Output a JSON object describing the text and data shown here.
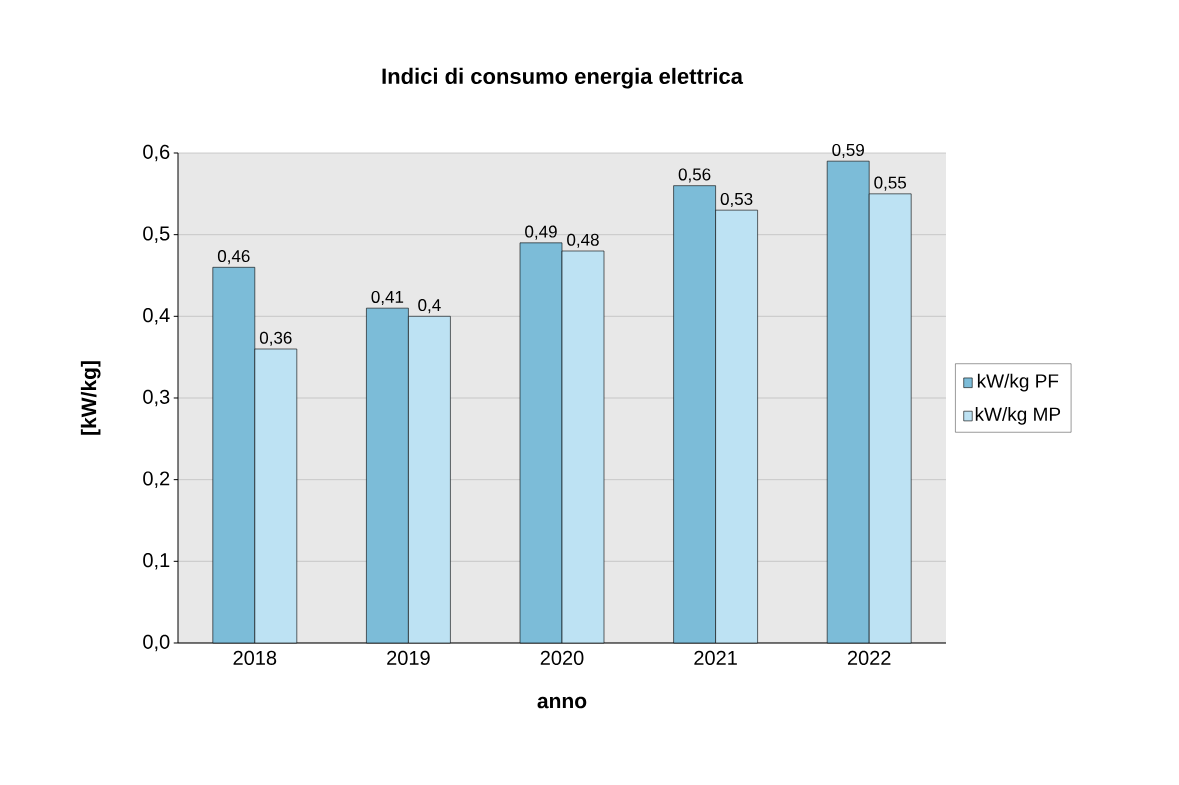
{
  "chart_data": {
    "type": "bar",
    "title": "Indici di consumo energia elettrica",
    "xlabel": "anno",
    "ylabel": "[kW/kg]",
    "categories": [
      "2018",
      "2019",
      "2020",
      "2021",
      "2022"
    ],
    "series": [
      {
        "name": "kW/kg PF",
        "color": "#7cbcd8",
        "values": [
          0.46,
          0.41,
          0.49,
          0.56,
          0.59
        ],
        "value_labels": [
          "0,46",
          "0,41",
          "0,49",
          "0,56",
          "0,59"
        ]
      },
      {
        "name": "kW/kg MP",
        "color": "#bde2f3",
        "values": [
          0.36,
          0.4,
          0.48,
          0.53,
          0.55
        ],
        "value_labels": [
          "0,36",
          "0,4",
          "0,48",
          "0,53",
          "0,55"
        ]
      }
    ],
    "ylim": [
      0,
      0.6
    ],
    "yticks": [
      {
        "value": 0,
        "label": "0,0"
      },
      {
        "value": 0.1,
        "label": "0,1"
      },
      {
        "value": 0.2,
        "label": "0,2"
      },
      {
        "value": 0.3,
        "label": "0,3"
      },
      {
        "value": 0.4,
        "label": "0,4"
      },
      {
        "value": 0.5,
        "label": "0,5"
      },
      {
        "value": 0.6,
        "label": "0,6"
      }
    ],
    "grid": "y",
    "legend": "right"
  }
}
